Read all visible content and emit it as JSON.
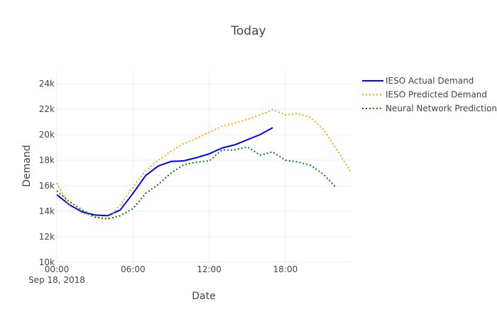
{
  "chart_data": {
    "type": "line",
    "title": "Today",
    "xlabel": "Date",
    "ylabel": "Demand",
    "x_tick_labels": [
      "00:00",
      "06:00",
      "12:00",
      "18:00"
    ],
    "x_tick_hours": [
      0,
      6,
      12,
      18
    ],
    "x_date_label": "Sep 18, 2018",
    "xlim_hours": [
      0,
      23.2
    ],
    "y_tick_labels": [
      "10k",
      "12k",
      "14k",
      "16k",
      "18k",
      "20k",
      "22k",
      "24k"
    ],
    "y_ticks": [
      10000,
      12000,
      14000,
      16000,
      18000,
      20000,
      22000,
      24000
    ],
    "ylim": [
      10000,
      25000
    ],
    "grid": true,
    "legend_position": "top-right",
    "series": [
      {
        "name": "IESO Actual Demand",
        "color": "#0000ff",
        "dash": "solid",
        "x": [
          0,
          1,
          2,
          3,
          4,
          5,
          6,
          7,
          8,
          9,
          10,
          11,
          12,
          13,
          14,
          15,
          16,
          17
        ],
        "values": [
          15300,
          14500,
          13950,
          13700,
          13650,
          14100,
          15400,
          16800,
          17550,
          17900,
          17950,
          18200,
          18500,
          18950,
          19200,
          19600,
          20000,
          20550
        ]
      },
      {
        "name": "IESO Predicted Demand",
        "color": "#ffa500",
        "dash": "dotted",
        "x": [
          0,
          1,
          2,
          3,
          4,
          5,
          6,
          7,
          8,
          9,
          10,
          11,
          12,
          13,
          14,
          15,
          16,
          17,
          18,
          19,
          20,
          21,
          22,
          23.2
        ],
        "values": [
          16200,
          14400,
          13850,
          13500,
          13400,
          14500,
          15900,
          17200,
          18000,
          18700,
          19300,
          19700,
          20200,
          20650,
          20900,
          21200,
          21550,
          21950,
          21550,
          21650,
          21350,
          20400,
          18900,
          17000
        ]
      },
      {
        "name": "Neural Network Prediction",
        "color": "#008000",
        "dash": "dotted",
        "x": [
          0,
          1,
          2,
          3,
          4,
          5,
          6,
          7,
          8,
          9,
          10,
          11,
          12,
          13,
          14,
          15,
          16,
          17,
          18,
          19,
          20,
          21,
          22
        ],
        "values": [
          15600,
          14750,
          14100,
          13550,
          13400,
          13650,
          14200,
          15400,
          16100,
          17000,
          17650,
          17850,
          17950,
          18800,
          18800,
          19050,
          18400,
          18650,
          18000,
          17850,
          17600,
          16900,
          15850
        ]
      }
    ]
  }
}
